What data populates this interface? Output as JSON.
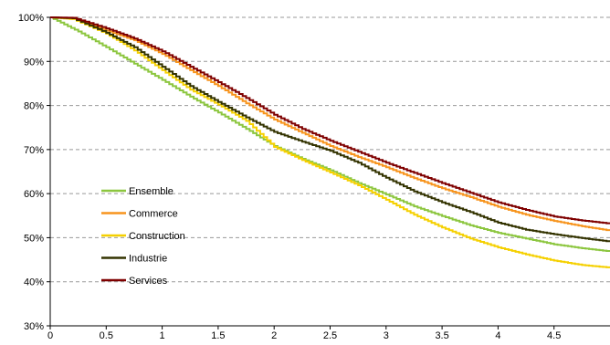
{
  "chart_data": {
    "type": "line",
    "title": "",
    "xlabel": "",
    "ylabel": "",
    "xlim": [
      0,
      5
    ],
    "ylim": [
      30,
      100
    ],
    "x_ticks": [
      "0",
      "0.5",
      "1",
      "1.5",
      "2",
      "2.5",
      "3",
      "3.5",
      "4",
      "4.5"
    ],
    "y_ticks": [
      "30%",
      "40%",
      "50%",
      "60%",
      "70%",
      "80%",
      "90%",
      "100%"
    ],
    "grid": "horizontal dashed",
    "legend_position": "left-middle",
    "series": [
      {
        "name": "Ensemble",
        "color": "#8cc63f",
        "x": [
          0,
          0.25,
          0.5,
          0.75,
          1,
          1.25,
          1.5,
          1.75,
          2,
          2.25,
          2.5,
          2.75,
          3,
          3.25,
          3.5,
          3.75,
          4,
          4.25,
          4.5,
          4.75,
          5
        ],
        "y": [
          100,
          96.8,
          93.2,
          89.5,
          85.8,
          82.0,
          78.4,
          74.7,
          70.8,
          67.9,
          65.3,
          62.4,
          59.8,
          57.1,
          54.9,
          52.8,
          51.1,
          49.8,
          48.5,
          47.6,
          46.9
        ]
      },
      {
        "name": "Commerce",
        "color": "#f7941d",
        "x": [
          0,
          0.2,
          0.5,
          0.75,
          1,
          1.25,
          1.5,
          1.75,
          2,
          2.25,
          2.5,
          2.75,
          3,
          3.25,
          3.5,
          3.75,
          4,
          4.25,
          4.5,
          4.75,
          5
        ],
        "y": [
          100,
          99.8,
          97.0,
          94.8,
          91.7,
          88.0,
          84.4,
          80.5,
          76.8,
          73.8,
          70.8,
          68.3,
          66.0,
          63.5,
          61.2,
          59.2,
          57.0,
          55.2,
          53.8,
          52.6,
          51.6
        ]
      },
      {
        "name": "Construction",
        "color": "#f5d000",
        "x": [
          0,
          0.2,
          0.5,
          0.75,
          1,
          1.25,
          1.5,
          1.75,
          2,
          2.25,
          2.5,
          2.75,
          3,
          3.25,
          3.5,
          3.75,
          4,
          4.25,
          4.5,
          4.75,
          5
        ],
        "y": [
          100,
          99.6,
          96.3,
          92.5,
          88.0,
          83.6,
          80.2,
          76.5,
          70.6,
          67.6,
          64.8,
          61.9,
          58.6,
          55.2,
          52.3,
          49.8,
          47.8,
          46.2,
          44.8,
          43.8,
          43.2
        ]
      },
      {
        "name": "Industrie",
        "color": "#333300",
        "x": [
          0,
          0.2,
          0.5,
          0.75,
          1,
          1.25,
          1.5,
          1.75,
          2,
          2.25,
          2.5,
          2.75,
          3,
          3.25,
          3.5,
          3.75,
          4,
          4.25,
          4.5,
          4.75,
          5
        ],
        "y": [
          100,
          99.8,
          96.5,
          93.2,
          88.8,
          84.4,
          80.8,
          77.3,
          74.0,
          71.8,
          69.7,
          67.0,
          63.6,
          60.5,
          58.0,
          55.8,
          53.4,
          51.8,
          50.8,
          49.9,
          49.1
        ]
      },
      {
        "name": "Services",
        "color": "#7f0000",
        "x": [
          0,
          0.2,
          0.5,
          0.75,
          1,
          1.25,
          1.5,
          1.75,
          2,
          2.25,
          2.5,
          2.75,
          3,
          3.25,
          3.5,
          3.75,
          4,
          4.25,
          4.5,
          4.75,
          5
        ],
        "y": [
          100,
          99.9,
          97.5,
          95.2,
          92.3,
          88.8,
          85.3,
          81.7,
          77.9,
          74.7,
          72.0,
          69.5,
          67.0,
          64.7,
          62.4,
          60.2,
          58.0,
          56.3,
          54.8,
          53.9,
          53.2
        ]
      }
    ]
  }
}
